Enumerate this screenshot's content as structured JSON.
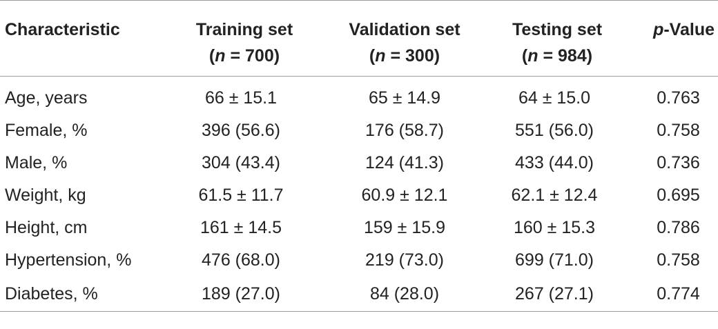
{
  "header": {
    "col0": "Characteristic",
    "col1_line1": "Training set",
    "col1_n_var": "n",
    "col1_n_val": " = 700)",
    "col2_line1": "Validation set",
    "col2_n_var": "n",
    "col2_n_val": " = 300)",
    "col3_line1": "Testing set",
    "col3_n_var": "n",
    "col3_n_val": " = 984)",
    "col4_var": "p",
    "col4_rest": "-Value"
  },
  "rows": [
    {
      "label": "Age, years",
      "train": "66 ± 15.1",
      "val": "65 ± 14.9",
      "test": "64 ± 15.0",
      "p": "0.763"
    },
    {
      "label": "Female, %",
      "train": "396 (56.6)",
      "val": "176 (58.7)",
      "test": "551 (56.0)",
      "p": "0.758"
    },
    {
      "label": "Male, %",
      "train": "304 (43.4)",
      "val": "124 (41.3)",
      "test": "433 (44.0)",
      "p": "0.736"
    },
    {
      "label": "Weight, kg",
      "train": "61.5 ± 11.7",
      "val": "60.9 ± 12.1",
      "test": "62.1 ± 12.4",
      "p": "0.695"
    },
    {
      "label": "Height, cm",
      "train": "161 ± 14.5",
      "val": "159 ± 15.9",
      "test": "160 ± 15.3",
      "p": "0.786"
    },
    {
      "label": "Hypertension, %",
      "train": "476 (68.0)",
      "val": "219 (73.0)",
      "test": "699 (71.0)",
      "p": "0.758"
    },
    {
      "label": "Diabetes, %",
      "train": "189 (27.0)",
      "val": "84 (28.0)",
      "test": "267 (27.1)",
      "p": "0.774"
    }
  ]
}
